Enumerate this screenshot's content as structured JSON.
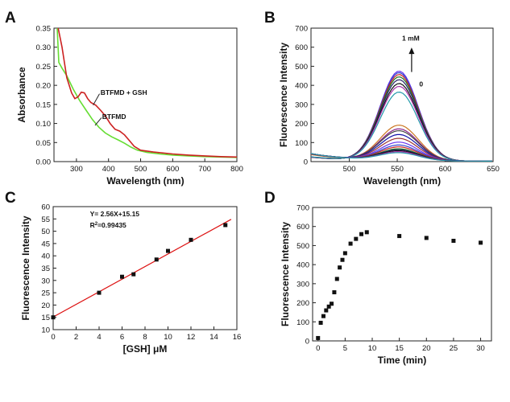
{
  "colors": {
    "axis": "#222222",
    "abs_btfmd": "#66dd33",
    "abs_btfmd_gsh": "#cc2222",
    "fit_line": "#dd1111",
    "marker": "#111111",
    "fl_palette": [
      "#6633ee",
      "#3344cc",
      "#cc2222",
      "#227722",
      "#222266",
      "#111111",
      "#aa33aa",
      "#2299aa",
      "#cc7722",
      "#882288",
      "#444444",
      "#1111aa",
      "#993333"
    ]
  },
  "chart_data": [
    {
      "panel": "A",
      "type": "line",
      "xlabel": "Wavelength (nm)",
      "ylabel": "Absorbance",
      "xlim": [
        230,
        800
      ],
      "ylim": [
        0,
        0.35
      ],
      "xticks": [
        300,
        400,
        500,
        600,
        700,
        800
      ],
      "yticks": [
        0.0,
        0.05,
        0.1,
        0.15,
        0.2,
        0.25,
        0.3,
        0.35
      ],
      "grid": false,
      "annotations": [
        "BTFMD + GSH",
        "BTFMD"
      ],
      "series": [
        {
          "name": "BTFMD",
          "x": [
            240,
            245,
            255,
            270,
            290,
            310,
            330,
            350,
            370,
            390,
            410,
            430,
            450,
            470,
            490,
            520,
            560,
            600,
            650,
            700,
            750,
            800
          ],
          "y": [
            0.35,
            0.26,
            0.245,
            0.225,
            0.19,
            0.16,
            0.135,
            0.11,
            0.09,
            0.075,
            0.065,
            0.057,
            0.048,
            0.038,
            0.03,
            0.024,
            0.02,
            0.017,
            0.015,
            0.013,
            0.012,
            0.011
          ]
        },
        {
          "name": "BTFMD + GSH",
          "x": [
            243,
            255,
            270,
            285,
            295,
            305,
            315,
            325,
            335,
            345,
            360,
            375,
            390,
            405,
            420,
            435,
            450,
            465,
            480,
            500,
            540,
            600,
            650,
            700,
            750,
            800
          ],
          "y": [
            0.35,
            0.3,
            0.22,
            0.18,
            0.165,
            0.17,
            0.182,
            0.18,
            0.165,
            0.155,
            0.148,
            0.135,
            0.12,
            0.1,
            0.085,
            0.08,
            0.07,
            0.055,
            0.04,
            0.03,
            0.025,
            0.02,
            0.017,
            0.015,
            0.013,
            0.012
          ]
        }
      ]
    },
    {
      "panel": "B",
      "type": "line",
      "xlabel": "Wavelength (nm)",
      "ylabel": "Fluorescence Intensity",
      "xlim": [
        460,
        650
      ],
      "ylim": [
        0,
        700
      ],
      "xticks": [
        500,
        550,
        600,
        650
      ],
      "yticks": [
        0,
        100,
        200,
        300,
        400,
        500,
        600,
        700
      ],
      "grid": false,
      "annotations": [
        "1 mM",
        "0"
      ],
      "series_shape": {
        "peak_nm": 552,
        "width_nm": 28,
        "baseline_left": 40,
        "baseline_right": 2
      },
      "peak_intensities": [
        470,
        462,
        452,
        440,
        425,
        405,
        390,
        360,
        185,
        165,
        155,
        135,
        115,
        95,
        80,
        70,
        60,
        55,
        50,
        45,
        40
      ]
    },
    {
      "panel": "C",
      "type": "scatter",
      "xlabel": "[GSH] μM",
      "ylabel": "Fluorescence Intensity",
      "xlim": [
        0,
        16
      ],
      "ylim": [
        10,
        60
      ],
      "xticks": [
        0,
        2,
        4,
        6,
        8,
        10,
        12,
        14,
        16
      ],
      "yticks": [
        10,
        15,
        20,
        25,
        30,
        35,
        40,
        45,
        50,
        55,
        60
      ],
      "grid": false,
      "equation": "Y= 2.56X+15.15",
      "r2_label": "R",
      "r2_sup": "2",
      "r2_value": "=0.99435",
      "fit": {
        "slope": 2.56,
        "intercept": 15.15
      },
      "x": [
        0,
        4,
        6,
        7,
        9,
        10,
        12,
        15
      ],
      "y": [
        15,
        25,
        31.5,
        32.5,
        38.5,
        42,
        46.5,
        52.5
      ]
    },
    {
      "panel": "D",
      "type": "scatter",
      "xlabel": "Time (min)",
      "ylabel": "Fluorescence Intensity",
      "xlim": [
        -1,
        32
      ],
      "ylim": [
        0,
        700
      ],
      "xticks": [
        0,
        5,
        10,
        15,
        20,
        25,
        30
      ],
      "yticks": [
        0,
        100,
        200,
        300,
        400,
        500,
        600,
        700
      ],
      "grid": false,
      "x": [
        0,
        0.5,
        1,
        1.5,
        2,
        2.5,
        3,
        3.5,
        4,
        4.5,
        5,
        6,
        7,
        8,
        9,
        15,
        20,
        25,
        30
      ],
      "y": [
        15,
        95,
        130,
        160,
        180,
        195,
        255,
        325,
        385,
        425,
        460,
        510,
        535,
        560,
        570,
        550,
        540,
        525,
        515
      ]
    }
  ]
}
